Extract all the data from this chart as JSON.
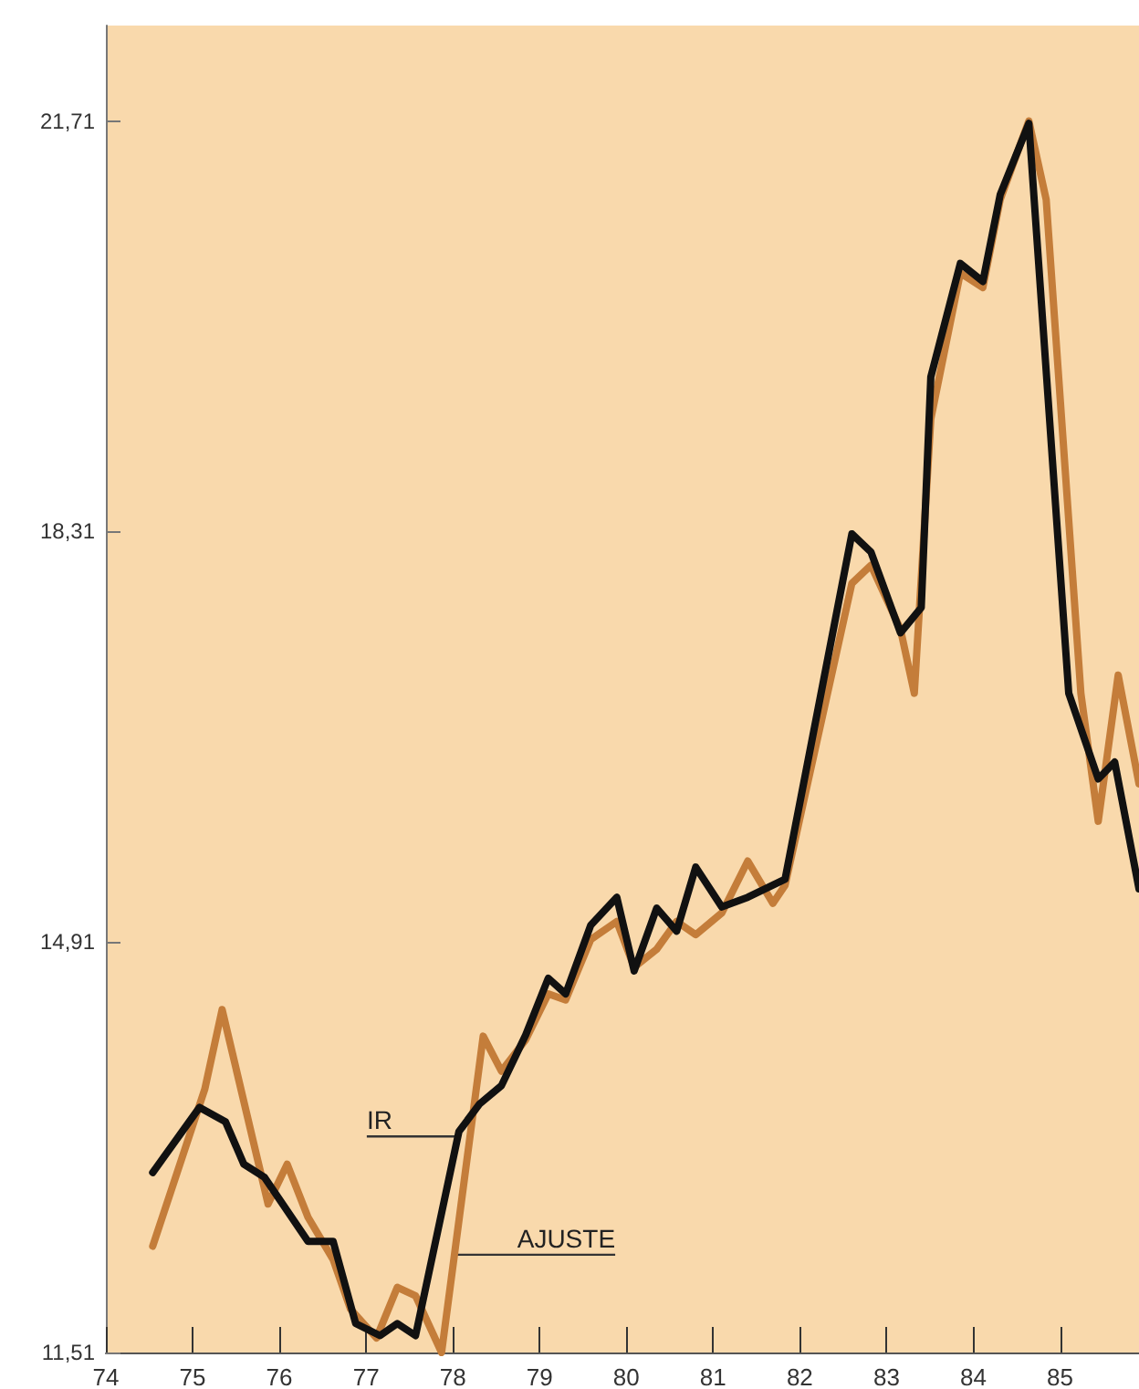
{
  "chart_data": {
    "type": "line",
    "xlim": [
      74,
      85.91
    ],
    "xticks": [
      74,
      75,
      76,
      77,
      78,
      79,
      80,
      81,
      82,
      83,
      84,
      85
    ],
    "ylim": [
      11.51,
      22.5
    ],
    "yticks": [
      {
        "value": 11.51,
        "label": "11,51"
      },
      {
        "value": 14.91,
        "label": "14,91"
      },
      {
        "value": 18.31,
        "label": "18,31"
      },
      {
        "value": 21.71,
        "label": "21,71"
      }
    ],
    "grid": false,
    "marker": "none",
    "line_style": "solid",
    "series": [
      {
        "color": "#c47d3a",
        "x": [
          74.54,
          75.14,
          75.34,
          75.87,
          76.09,
          76.33,
          76.62,
          76.82,
          77.12,
          77.36,
          77.57,
          77.87,
          78.35,
          78.56,
          78.84,
          79.1,
          79.3,
          79.59,
          79.89,
          80.09,
          80.35,
          80.58,
          80.8,
          81.1,
          81.4,
          81.69,
          81.83,
          82.6,
          82.82,
          83.16,
          83.32,
          83.51,
          83.85,
          84.11,
          84.31,
          84.64,
          84.84,
          85.24,
          85.44,
          85.67,
          85.91
        ],
        "values": [
          12.39,
          13.69,
          14.35,
          12.74,
          13.07,
          12.63,
          12.28,
          11.87,
          11.63,
          12.05,
          11.98,
          11.51,
          14.13,
          13.84,
          14.1,
          14.48,
          14.43,
          14.93,
          15.08,
          14.7,
          14.85,
          15.08,
          14.97,
          15.15,
          15.58,
          15.23,
          15.38,
          17.88,
          18.03,
          17.5,
          16.97,
          19.24,
          20.45,
          20.33,
          21.06,
          21.71,
          21.06,
          16.97,
          15.91,
          17.12,
          16.22
        ]
      },
      {
        "color": "#111111",
        "x": [
          74.54,
          75.08,
          75.38,
          75.59,
          75.83,
          76.33,
          76.62,
          76.88,
          77.16,
          77.36,
          77.57,
          78.07,
          78.31,
          78.56,
          78.84,
          79.1,
          79.3,
          79.59,
          79.89,
          80.09,
          80.35,
          80.58,
          80.8,
          81.1,
          81.4,
          81.83,
          82.6,
          82.82,
          83.16,
          83.4,
          83.51,
          83.85,
          84.11,
          84.31,
          84.64,
          85.1,
          85.44,
          85.63,
          85.91
        ],
        "values": [
          13.0,
          13.54,
          13.42,
          13.07,
          12.96,
          12.43,
          12.43,
          11.75,
          11.65,
          11.75,
          11.65,
          13.34,
          13.57,
          13.72,
          14.14,
          14.61,
          14.48,
          15.05,
          15.28,
          14.67,
          15.19,
          15.0,
          15.53,
          15.2,
          15.28,
          15.43,
          18.29,
          18.14,
          17.47,
          17.68,
          19.59,
          20.53,
          20.38,
          21.1,
          21.69,
          16.97,
          16.26,
          16.4,
          15.35
        ]
      }
    ],
    "annotations": [
      {
        "text": "IR",
        "x": 78.06,
        "y": 13.3
      },
      {
        "text": "AJUSTE",
        "x": 78.02,
        "y": 12.32
      }
    ]
  }
}
